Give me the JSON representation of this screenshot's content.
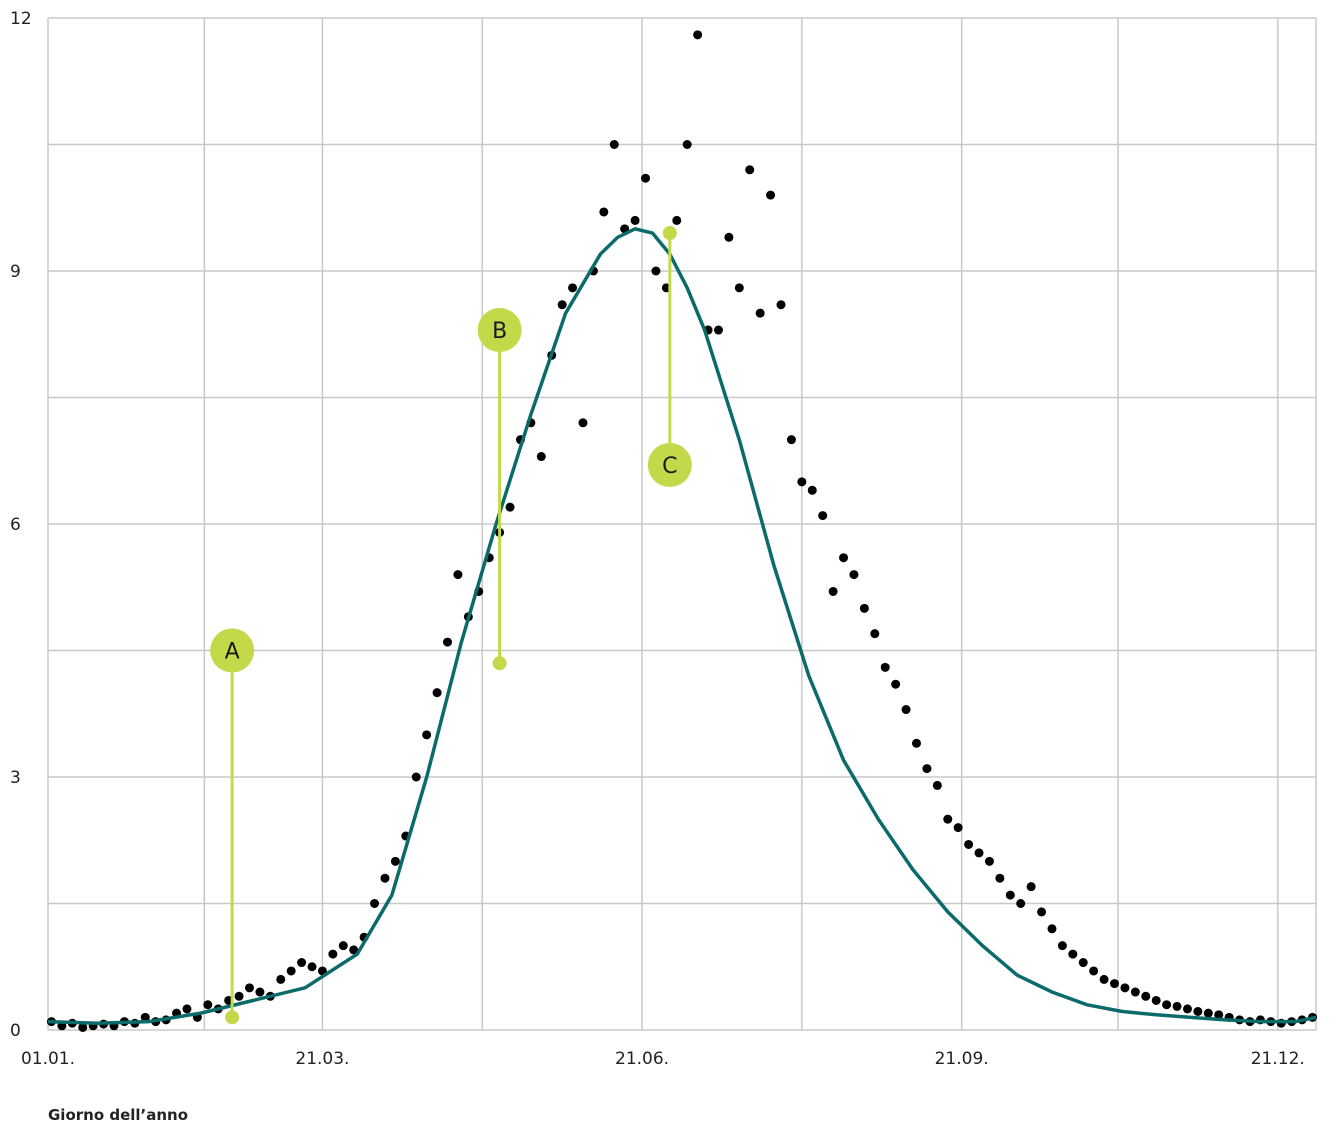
{
  "chart_data": {
    "type": "scatter",
    "title": "",
    "xlabel": "Giorno dell’anno",
    "ylabel": "",
    "xlim": [
      1,
      366
    ],
    "ylim": [
      0,
      12
    ],
    "y_ticks": [
      "0",
      "3",
      "6",
      "9",
      "12"
    ],
    "x_ticks": [
      {
        "day": 1,
        "label": "01.01."
      },
      {
        "day": 80,
        "label": "21.03."
      },
      {
        "day": 172,
        "label": "21.06."
      },
      {
        "day": 264,
        "label": "21.09."
      },
      {
        "day": 355,
        "label": "21.12."
      }
    ],
    "grid": true,
    "legend": "none",
    "colors": {
      "points": "#000000",
      "curve": "#0b6b6b",
      "marker": "#c4d94a",
      "grid": "#c8c8c8"
    },
    "series": [
      {
        "type": "scatter",
        "x": [
          2,
          5,
          8,
          11,
          14,
          17,
          20,
          23,
          26,
          29,
          32,
          35,
          38,
          41,
          44,
          47,
          50,
          53,
          56,
          59,
          62,
          65,
          68,
          71,
          74,
          77,
          80,
          83,
          86,
          89,
          92,
          95,
          98,
          101,
          104,
          107,
          110,
          113,
          116,
          119,
          122,
          125,
          128,
          131,
          134,
          137,
          140,
          143,
          146,
          149,
          152,
          155,
          158,
          161,
          164,
          167,
          170,
          173,
          176,
          179,
          182,
          185,
          188,
          191,
          194,
          197,
          200,
          203,
          206,
          209,
          212,
          215,
          218,
          221,
          224,
          227,
          230,
          233,
          236,
          239,
          242,
          245,
          248,
          251,
          254,
          257,
          260,
          263,
          266,
          269,
          272,
          275,
          278,
          281,
          284,
          287,
          290,
          293,
          296,
          299,
          302,
          305,
          308,
          311,
          314,
          317,
          320,
          323,
          326,
          329,
          332,
          335,
          338,
          341,
          344,
          347,
          350,
          353,
          356,
          359,
          362,
          365
        ],
        "y": [
          0.1,
          0.05,
          0.08,
          0.03,
          0.05,
          0.07,
          0.05,
          0.1,
          0.08,
          0.15,
          0.1,
          0.12,
          0.2,
          0.25,
          0.15,
          0.3,
          0.25,
          0.35,
          0.4,
          0.5,
          0.45,
          0.4,
          0.6,
          0.7,
          0.8,
          0.75,
          0.7,
          0.9,
          1.0,
          0.95,
          1.1,
          1.5,
          1.8,
          2.0,
          2.3,
          3.0,
          3.5,
          4.0,
          4.6,
          5.4,
          4.9,
          5.2,
          5.6,
          5.9,
          6.2,
          7.0,
          7.2,
          6.8,
          8.0,
          8.6,
          8.8,
          7.2,
          9.0,
          9.7,
          10.5,
          9.5,
          9.6,
          10.1,
          9.0,
          8.8,
          9.6,
          10.5,
          11.8,
          8.3,
          8.3,
          9.4,
          8.8,
          10.2,
          8.5,
          9.9,
          8.6,
          7.0,
          6.5,
          6.4,
          6.1,
          5.2,
          5.6,
          5.4,
          5.0,
          4.7,
          4.3,
          4.1,
          3.8,
          3.4,
          3.1,
          2.9,
          2.5,
          2.4,
          2.2,
          2.1,
          2.0,
          1.8,
          1.6,
          1.5,
          1.7,
          1.4,
          1.2,
          1.0,
          0.9,
          0.8,
          0.7,
          0.6,
          0.55,
          0.5,
          0.45,
          0.4,
          0.35,
          0.3,
          0.28,
          0.25,
          0.22,
          0.2,
          0.18,
          0.15,
          0.12,
          0.1,
          0.12,
          0.1,
          0.08,
          0.1,
          0.12,
          0.15
        ]
      },
      {
        "type": "line",
        "x": [
          1,
          15,
          30,
          45,
          60,
          75,
          90,
          100,
          110,
          120,
          130,
          140,
          150,
          160,
          165,
          170,
          175,
          180,
          185,
          190,
          200,
          210,
          220,
          230,
          240,
          250,
          260,
          270,
          280,
          290,
          300,
          310,
          320,
          330,
          340,
          350,
          360,
          366
        ],
        "y": [
          0.1,
          0.08,
          0.1,
          0.2,
          0.35,
          0.5,
          0.9,
          1.6,
          3.0,
          4.6,
          6.0,
          7.3,
          8.5,
          9.2,
          9.4,
          9.5,
          9.45,
          9.2,
          8.8,
          8.3,
          7.0,
          5.5,
          4.2,
          3.2,
          2.5,
          1.9,
          1.4,
          1.0,
          0.65,
          0.45,
          0.3,
          0.22,
          0.18,
          0.15,
          0.12,
          0.1,
          0.1,
          0.15
        ]
      }
    ],
    "annotations": [
      {
        "label": "A",
        "x": 54,
        "y": 0.15,
        "label_y": 4.5
      },
      {
        "label": "B",
        "x": 131,
        "y": 4.35,
        "label_y": 8.3
      },
      {
        "label": "C",
        "x": 180,
        "y": 9.45,
        "label_y": 6.7
      }
    ]
  }
}
